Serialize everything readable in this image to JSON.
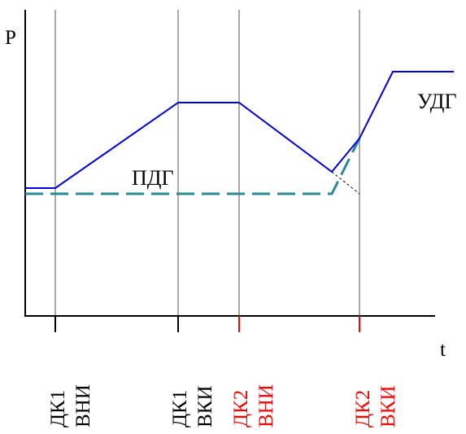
{
  "axes": {
    "y_label": "P",
    "x_label": "t"
  },
  "curves": {
    "top_label": "УДГ",
    "bottom_label": "ПДГ"
  },
  "markers": [
    {
      "line1": "ДК1",
      "line2": "ВНИ",
      "color": "#000000"
    },
    {
      "line1": "ДК1",
      "line2": "ВКИ",
      "color": "#000000"
    },
    {
      "line1": "ДК2",
      "line2": "ВНИ",
      "color": "#ff0000"
    },
    {
      "line1": "ДК2",
      "line2": "ВКИ",
      "color": "#ff0000"
    }
  ],
  "colors": {
    "blue_line": "#0000dd",
    "dashed_line": "#2a8a96",
    "grid": "#aaaaaa",
    "axis": "#000000",
    "red_tick": "#ff0000"
  }
}
